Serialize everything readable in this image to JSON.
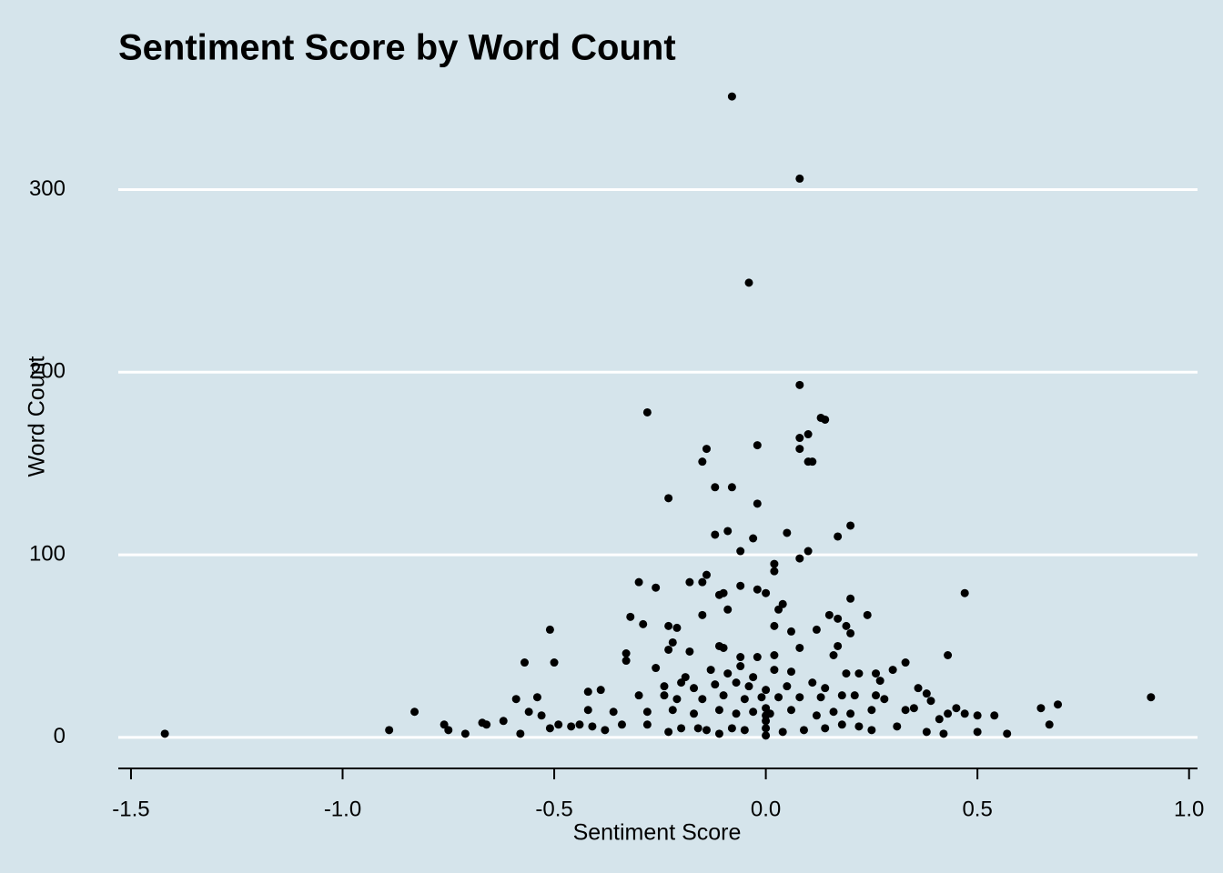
{
  "chart_data": {
    "type": "scatter",
    "title": "Sentiment Score by Word Count",
    "x_label": "Sentiment Score",
    "y_label": "Word Count",
    "color": "#000000",
    "grid": true,
    "xlim": [
      -1.53,
      1.02
    ],
    "ylim": [
      -17,
      359
    ],
    "xticks": [
      -1.5,
      {
        "value": -1.0,
        "label": "-1.0"
      },
      -0.5,
      {
        "value": 0,
        "label": "0.0"
      },
      0.5,
      {
        "value": 1.0,
        "label": "1.0"
      }
    ],
    "yticks": [
      0,
      100,
      200,
      300
    ],
    "x": [
      -0.08,
      0.08,
      -0.04,
      0.08,
      -0.28,
      0.13,
      0.14,
      0.08,
      0.1,
      -0.14,
      -0.02,
      0.08,
      -0.15,
      0.11,
      0.1,
      -0.12,
      -0.08,
      -0.23,
      -0.02,
      -0.09,
      -0.12,
      0.05,
      0.2,
      0.17,
      -0.03,
      0.1,
      -0.06,
      0.08,
      0.02,
      0.02,
      -0.3,
      -0.18,
      -0.26,
      -0.14,
      -0.15,
      0.47,
      -0.11,
      -0.1,
      -0.06,
      -0.02,
      0,
      0.2,
      -0.09,
      -0.15,
      0.04,
      0.03,
      -0.32,
      -0.29,
      0.24,
      0.15,
      0.17,
      -0.51,
      -0.23,
      -0.21,
      0.02,
      0.06,
      0.12,
      0.19,
      0.2,
      -0.5,
      -0.57,
      -0.33,
      -0.33,
      -0.23,
      -0.22,
      -0.18,
      -0.11,
      -0.1,
      -0.06,
      -0.02,
      0.02,
      0.08,
      0.16,
      0.17,
      0.43,
      0.33,
      0.3,
      -0.26,
      -0.19,
      -0.13,
      -0.09,
      -0.06,
      -0.03,
      0.02,
      0.06,
      0.19,
      0.22,
      0.26,
      0.27,
      -0.24,
      -0.2,
      -0.17,
      -0.12,
      -0.07,
      -0.04,
      0,
      0.05,
      0.11,
      0.14,
      0.36,
      0.38,
      -0.59,
      -0.54,
      -0.42,
      -0.39,
      -0.3,
      -0.24,
      -0.21,
      -0.15,
      -0.1,
      -0.05,
      -0.01,
      0.03,
      0.08,
      0.13,
      0.18,
      0.21,
      0.26,
      0.28,
      0.91,
      0.39,
      0.69,
      0.65,
      0.47,
      0.45,
      0.54,
      0.5,
      0.41,
      0.33,
      0.35,
      0.43,
      -0.83,
      -0.56,
      -0.53,
      -0.42,
      -0.36,
      -0.28,
      -0.22,
      -0.17,
      -0.11,
      -0.07,
      -0.03,
      0.01,
      0.06,
      0.12,
      0.16,
      0.2,
      0.25,
      -0.89,
      -0.76,
      -0.75,
      -0.71,
      -0.67,
      -0.66,
      -0.58,
      -0.62,
      -0.51,
      -0.49,
      -0.46,
      -0.44,
      -0.41,
      -0.38,
      -0.34,
      -0.28,
      -0.23,
      -0.2,
      -0.16,
      -0.14,
      -0.11,
      -0.08,
      -0.05,
      0,
      0,
      0,
      0,
      0,
      0.04,
      0.09,
      0.14,
      0.18,
      0.22,
      0.25,
      0.31,
      0.38,
      0.42,
      0.5,
      0.57,
      0.67,
      -1.42
    ],
    "values": [
      351,
      306,
      249,
      193,
      178,
      175,
      174,
      164,
      166,
      158,
      160,
      158,
      151,
      151,
      151,
      137,
      137,
      131,
      128,
      113,
      111,
      112,
      116,
      110,
      109,
      102,
      102,
      98,
      95,
      91,
      85,
      85,
      82,
      89,
      85,
      79,
      78,
      79,
      83,
      81,
      79,
      76,
      70,
      67,
      73,
      70,
      66,
      62,
      67,
      67,
      65,
      59,
      61,
      60,
      61,
      58,
      59,
      61,
      57,
      41,
      41,
      46,
      42,
      48,
      52,
      47,
      50,
      49,
      44,
      44,
      45,
      49,
      45,
      50,
      45,
      41,
      37,
      38,
      33,
      37,
      35,
      39,
      33,
      37,
      36,
      35,
      35,
      35,
      31,
      28,
      30,
      27,
      29,
      30,
      28,
      26,
      28,
      30,
      27,
      27,
      24,
      21,
      22,
      25,
      26,
      23,
      23,
      21,
      21,
      23,
      21,
      22,
      22,
      22,
      22,
      23,
      23,
      23,
      21,
      22,
      20,
      18,
      16,
      13,
      16,
      12,
      12,
      10,
      15,
      16,
      13,
      14,
      14,
      12,
      15,
      14,
      14,
      15,
      13,
      15,
      13,
      14,
      13,
      15,
      12,
      14,
      13,
      15,
      4,
      7,
      4,
      2,
      8,
      7,
      2,
      9,
      5,
      7,
      6,
      7,
      6,
      4,
      7,
      7,
      3,
      5,
      5,
      4,
      2,
      5,
      4,
      1,
      5,
      9,
      12,
      16,
      3,
      4,
      5,
      7,
      6,
      4,
      6,
      3,
      2,
      3,
      2,
      7,
      2
    ]
  }
}
